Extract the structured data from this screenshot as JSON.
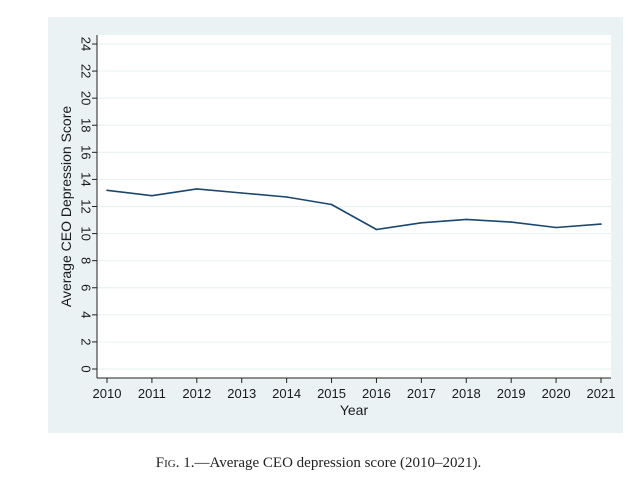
{
  "chart_data": {
    "type": "line",
    "title": "",
    "xlabel": "Year",
    "ylabel": "Average CEO Depression Score",
    "x": [
      2010,
      2011,
      2012,
      2013,
      2014,
      2015,
      2016,
      2017,
      2018,
      2019,
      2020,
      2021
    ],
    "series": [
      {
        "name": "Average CEO depression score",
        "values": [
          13.2,
          12.8,
          13.3,
          13.0,
          12.7,
          12.15,
          10.3,
          10.8,
          11.05,
          10.85,
          10.45,
          10.7
        ]
      }
    ],
    "xlim": [
      2010,
      2021
    ],
    "ylim": [
      0,
      24
    ],
    "yticks": [
      "0",
      "2",
      "4",
      "6",
      "8",
      "10",
      "12",
      "14",
      "16",
      "18",
      "20",
      "22",
      "24"
    ],
    "xticks": [
      "2010",
      "2011",
      "2012",
      "2013",
      "2014",
      "2015",
      "2016",
      "2017",
      "2018",
      "2019",
      "2020",
      "2021"
    ],
    "grid": true,
    "legend": "none"
  },
  "caption": {
    "prefix": "Fig. 1.",
    "text": "—Average CEO depression score (2010–2021)."
  },
  "colors": {
    "panel_background": "#eaf2f3",
    "plot_background": "#ffffff",
    "line": "#1a476f",
    "grid": "#eaf2f3"
  }
}
